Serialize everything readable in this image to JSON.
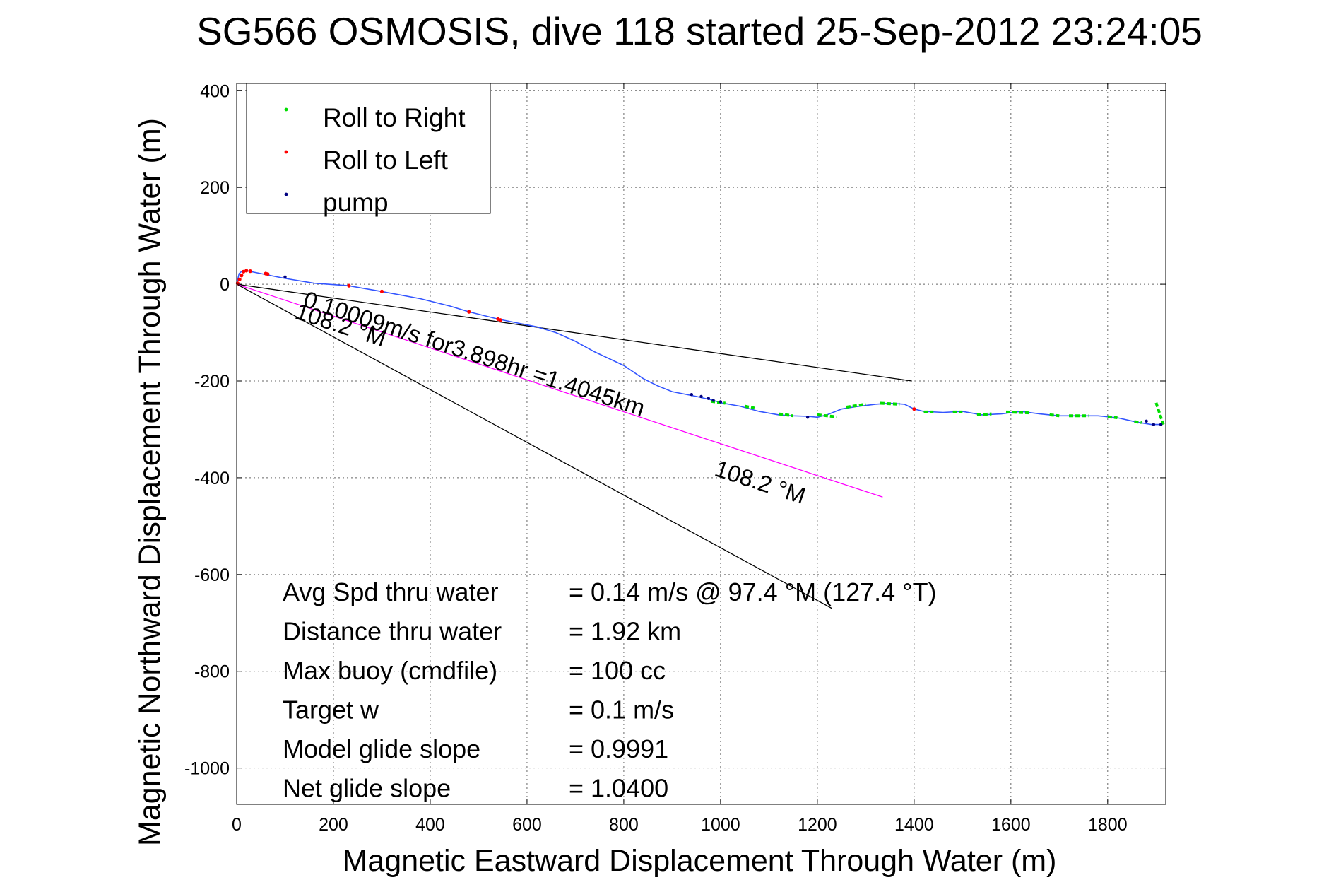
{
  "chart_data": {
    "type": "scatter",
    "title": "SG566 OSMOSIS, dive 118 started 25-Sep-2012 23:24:05",
    "xlabel": "Magnetic Eastward Displacement Through Water (m)",
    "ylabel": "Magnetic Northward Displacement Through Water (m)",
    "xlim": [
      0,
      1920
    ],
    "ylim": [
      -1075,
      415
    ],
    "x_ticks": [
      0,
      200,
      400,
      600,
      800,
      1000,
      1200,
      1400,
      1600,
      1800
    ],
    "y_ticks": [
      400,
      200,
      0,
      -200,
      -400,
      -600,
      -800,
      -1000
    ],
    "grid": true,
    "legend_position": "top-left",
    "legend": [
      {
        "label": "Roll to Right",
        "color": "#00dd00"
      },
      {
        "label": "Roll to Left",
        "color": "#ff0000"
      },
      {
        "label": "pump",
        "color": "#000080"
      }
    ],
    "track": {
      "color": "#3355ff",
      "x": [
        0,
        5,
        12,
        20,
        35,
        60,
        100,
        160,
        230,
        300,
        380,
        440,
        480,
        540,
        580,
        620,
        660,
        700,
        740,
        800,
        840,
        870,
        900,
        950,
        985,
        1000,
        1040,
        1080,
        1120,
        1150,
        1180,
        1200,
        1220,
        1250,
        1280,
        1320,
        1350,
        1380,
        1400,
        1420,
        1460,
        1500,
        1540,
        1580,
        1620,
        1660,
        1700,
        1740,
        1780,
        1820,
        1860,
        1890,
        1905,
        1915
      ],
      "y": [
        0,
        22,
        28,
        28,
        25,
        20,
        12,
        2,
        -3,
        -15,
        -30,
        -45,
        -57,
        -72,
        -80,
        -88,
        -100,
        -118,
        -140,
        -168,
        -195,
        -210,
        -222,
        -232,
        -240,
        -245,
        -252,
        -263,
        -270,
        -272,
        -273,
        -275,
        -270,
        -258,
        -253,
        -248,
        -246,
        -248,
        -258,
        -263,
        -265,
        -263,
        -270,
        -268,
        -263,
        -268,
        -272,
        -272,
        -272,
        -276,
        -285,
        -290,
        -290,
        -288
      ]
    },
    "roll_right_segments": [
      {
        "x": [
          980,
          1010
        ],
        "y": [
          -242,
          -246
        ]
      },
      {
        "x": [
          1050,
          1070
        ],
        "y": [
          -252,
          -256
        ]
      },
      {
        "x": [
          1120,
          1150
        ],
        "y": [
          -268,
          -272
        ]
      },
      {
        "x": [
          1200,
          1240
        ],
        "y": [
          -270,
          -274
        ]
      },
      {
        "x": [
          1260,
          1300
        ],
        "y": [
          -254,
          -248
        ]
      },
      {
        "x": [
          1330,
          1370
        ],
        "y": [
          -246,
          -248
        ]
      },
      {
        "x": [
          1420,
          1440
        ],
        "y": [
          -264,
          -264
        ]
      },
      {
        "x": [
          1480,
          1500
        ],
        "y": [
          -264,
          -264
        ]
      },
      {
        "x": [
          1530,
          1560
        ],
        "y": [
          -270,
          -268
        ]
      },
      {
        "x": [
          1590,
          1640
        ],
        "y": [
          -264,
          -266
        ]
      },
      {
        "x": [
          1680,
          1700
        ],
        "y": [
          -270,
          -272
        ]
      },
      {
        "x": [
          1720,
          1760
        ],
        "y": [
          -272,
          -272
        ]
      },
      {
        "x": [
          1800,
          1820
        ],
        "y": [
          -274,
          -276
        ]
      },
      {
        "x": [
          1855,
          1870
        ],
        "y": [
          -284,
          -286
        ]
      },
      {
        "x": [
          1900,
          1915
        ],
        "y": [
          -245,
          -290
        ]
      }
    ],
    "roll_left_points": {
      "x": [
        2,
        6,
        10,
        14,
        20,
        28,
        60,
        64,
        232,
        300,
        480,
        540,
        545,
        1400
      ],
      "y": [
        2,
        10,
        18,
        26,
        28,
        27,
        22,
        21,
        -3,
        -15,
        -57,
        -72,
        -74,
        -258
      ]
    },
    "pump_points": {
      "x": [
        100,
        940,
        960,
        975,
        985,
        1000,
        1180,
        1880,
        1895,
        1910
      ],
      "y": [
        15,
        -228,
        -232,
        -236,
        -240,
        -243,
        -275,
        -283,
        -290,
        -290
      ]
    },
    "reference_lines": [
      {
        "color": "#000000",
        "x": [
          0,
          1395
        ],
        "y": [
          0,
          -200
        ]
      },
      {
        "color": "#ff00ff",
        "x": [
          0,
          1335
        ],
        "y": [
          0,
          -440
        ]
      },
      {
        "color": "#000000",
        "x": [
          0,
          1230
        ],
        "y": [
          0,
          -670
        ]
      }
    ],
    "annotations": [
      {
        "text": "0.10009m/s for3.898hr =1.4045km",
        "x": 135,
        "y": -45,
        "rotation_deg": 18
      },
      {
        "text": "108.2 °M",
        "x": 118,
        "y": -70,
        "rotation_deg": 18
      },
      {
        "text": "108.2 °M",
        "x": 985,
        "y": -395,
        "rotation_deg": 18
      }
    ],
    "stats": [
      {
        "label": "Avg Spd thru water",
        "value": "=  0.14 m/s @  97.4 °M (127.4 °T)"
      },
      {
        "label": "Distance thru water",
        "value": "=  1.92 km"
      },
      {
        "label": "Max buoy (cmdfile)",
        "value": "= 100 cc"
      },
      {
        "label": "Target w",
        "value": "= 0.1 m/s"
      },
      {
        "label": "Model glide slope",
        "value": "= 0.9991"
      },
      {
        "label": "Net glide slope",
        "value": "= 1.0400"
      }
    ]
  }
}
